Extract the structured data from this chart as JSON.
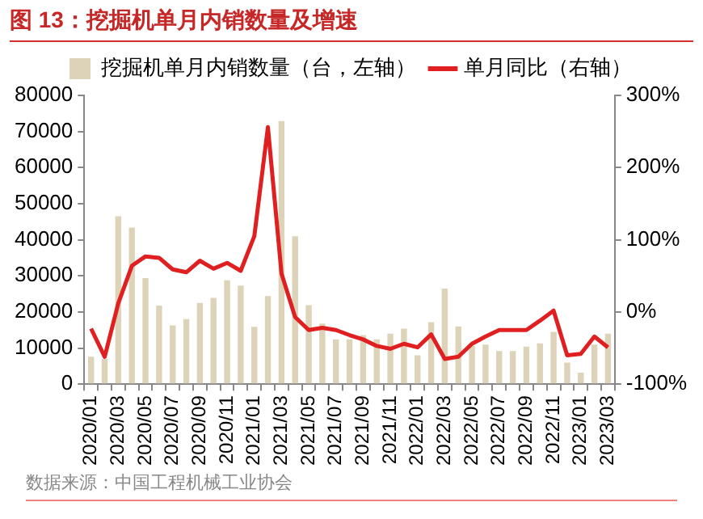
{
  "chart_data": {
    "type": "bar",
    "title": "图 13：挖掘机单月内销数量及增速",
    "categories": [
      "2020/01",
      null,
      "2020/03",
      null,
      "2020/05",
      null,
      "2020/07",
      null,
      "2020/09",
      null,
      "2020/11",
      null,
      "2021/01",
      null,
      "2021/03",
      null,
      "2021/05",
      null,
      "2021/07",
      null,
      "2021/09",
      null,
      "2021/11",
      null,
      "2022/01",
      null,
      "2022/03",
      null,
      "2022/05",
      null,
      "2022/07",
      null,
      "2022/09",
      null,
      "2022/11",
      null,
      "2023/01",
      null,
      "2023/03"
    ],
    "series": [
      {
        "name": "挖掘机单月内销数量（台，左轴）",
        "color": "#ddd3b8",
        "values": [
          7600,
          7000,
          46500,
          43400,
          29400,
          21800,
          16300,
          18000,
          22500,
          23900,
          28800,
          27300,
          15900,
          24400,
          72900,
          41000,
          21900,
          16800,
          12400,
          12400,
          13600,
          12400,
          14000,
          15400,
          8000,
          17200,
          26500,
          16000,
          10600,
          11000,
          9200,
          9200,
          10400,
          11300,
          14500,
          6000,
          3200,
          11000,
          14000
        ]
      },
      {
        "name": "单月同比（右轴）",
        "type": "line",
        "axis": "y2",
        "color": "#e02020",
        "values": [
          -23,
          -62,
          12,
          64,
          77,
          75,
          59,
          55,
          71,
          60,
          68,
          57,
          105,
          256,
          53,
          -7,
          -25,
          -22,
          -25,
          -32,
          -38,
          -47,
          -51,
          -44,
          -49,
          -31,
          -65,
          -62,
          -44,
          -34,
          -25,
          -25,
          -25,
          -12,
          2,
          -60,
          -58,
          -34,
          -49
        ]
      }
    ],
    "ylim": [
      0,
      80000
    ],
    "yticks": [
      0,
      10000,
      20000,
      30000,
      40000,
      50000,
      60000,
      70000,
      80000
    ],
    "y2lim": [
      -100,
      300
    ],
    "y2ticks": [
      {
        "value": -100,
        "label": "-100%"
      },
      {
        "value": 0,
        "label": "0%"
      },
      {
        "value": 100,
        "label": "100%"
      },
      {
        "value": 200,
        "label": "200%"
      },
      {
        "value": 300,
        "label": "300%"
      }
    ],
    "legend": "top",
    "marker": "none",
    "annotations": [
      "数据来源：中国工程机械工业协会"
    ]
  }
}
